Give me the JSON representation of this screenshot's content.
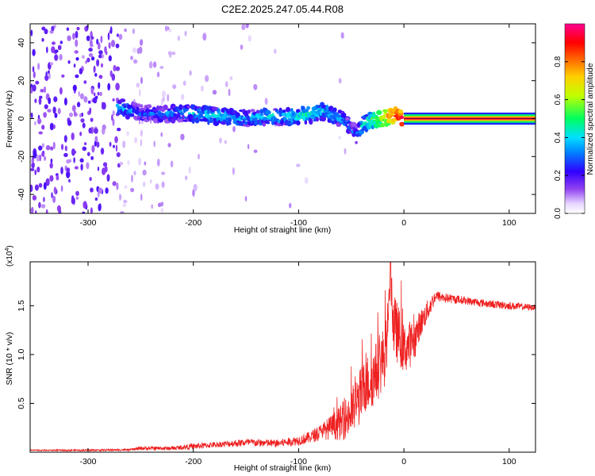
{
  "figure_title": "C2E2.2025.247.05.44.R08",
  "chart_data": [
    {
      "type": "heatmap",
      "title": "C2E2.2025.247.05.44.R08",
      "xlabel": "Height of straight line (km)",
      "ylabel": "Frequency (Hz)",
      "xlim": [
        -355,
        125
      ],
      "ylim": [
        -50,
        50
      ],
      "x_ticks": [
        -300,
        -200,
        -100,
        0,
        100
      ],
      "y_ticks": [
        -40,
        -20,
        0,
        20,
        40
      ],
      "x_tick_labels": [
        "-300",
        "-200",
        "-100",
        "0",
        "100"
      ],
      "y_tick_labels": [
        "-40",
        "-20",
        "0",
        "20",
        "40"
      ],
      "ridge": {
        "description_values": "frequency offset of the strongest spectral ridge vs height",
        "x": [
          -270,
          -250,
          -230,
          -210,
          -190,
          -170,
          -150,
          -130,
          -110,
          -90,
          -75,
          -60,
          -50,
          -45,
          -40,
          -35,
          -25,
          -15,
          -8,
          -3,
          0
        ],
        "y": [
          6,
          3,
          2,
          3,
          2,
          1,
          0,
          1,
          1,
          2,
          4,
          0,
          -5,
          -9,
          -4,
          -2,
          0,
          1,
          2,
          0,
          0
        ],
        "amplitude": [
          0.35,
          0.3,
          0.3,
          0.35,
          0.4,
          0.4,
          0.35,
          0.4,
          0.4,
          0.45,
          0.4,
          0.35,
          0.3,
          0.3,
          0.4,
          0.45,
          0.6,
          0.75,
          0.9,
          0.95,
          1.0
        ]
      },
      "constant_line": {
        "x_start": 0,
        "x_end": 125,
        "frequency": 0,
        "amplitude": 1.0
      },
      "colorbar": {
        "label": "Normalized spectral amplitude",
        "range": [
          0,
          1
        ],
        "ticks": [
          0.0,
          0.2,
          0.4,
          0.6,
          0.8
        ],
        "tick_labels": [
          "0.0",
          "0.2",
          "0.4",
          "0.6",
          "0.8"
        ],
        "colors": [
          "#ffffff",
          "#c8a0f0",
          "#6a00e0",
          "#0000ff",
          "#00d8ff",
          "#00ff40",
          "#ffff00",
          "#ff8000",
          "#ff0000",
          "#ff0080"
        ]
      }
    },
    {
      "type": "line",
      "xlabel": "Height of straight line (km)",
      "ylabel": "SNR (10 * v/v)",
      "y_scale_label": "(x10",
      "y_scale_exponent": "4",
      "xlim": [
        -355,
        125
      ],
      "ylim": [
        0,
        1.95
      ],
      "x_ticks": [
        -300,
        -200,
        -100,
        0,
        100
      ],
      "y_ticks": [
        0.5,
        1.0,
        1.5
      ],
      "x_tick_labels": [
        "-300",
        "-200",
        "-100",
        "0",
        "100"
      ],
      "y_tick_labels": [
        "0.5",
        "1.0",
        "1.5"
      ],
      "color": "#ee2020",
      "series": [
        {
          "name": "SNR",
          "x": [
            -355,
            -300,
            -260,
            -250,
            -220,
            -200,
            -175,
            -150,
            -120,
            -100,
            -90,
            -80,
            -70,
            -60,
            -50,
            -45,
            -40,
            -35,
            -30,
            -25,
            -20,
            -15,
            -13,
            -10,
            -5,
            0,
            5,
            10,
            15,
            20,
            25,
            30,
            40,
            60,
            80,
            100,
            125
          ],
          "y": [
            0.02,
            0.02,
            0.025,
            0.04,
            0.04,
            0.06,
            0.08,
            0.1,
            0.09,
            0.12,
            0.15,
            0.2,
            0.25,
            0.3,
            0.4,
            0.5,
            0.6,
            0.7,
            0.75,
            0.85,
            0.95,
            1.1,
            1.95,
            1.3,
            1.2,
            1.05,
            1.1,
            1.15,
            1.3,
            1.4,
            1.5,
            1.6,
            1.58,
            1.55,
            1.52,
            1.5,
            1.48
          ],
          "noise_amplitude": [
            0.005,
            0.01,
            0.01,
            0.02,
            0.02,
            0.03,
            0.03,
            0.04,
            0.04,
            0.05,
            0.06,
            0.08,
            0.12,
            0.18,
            0.25,
            0.28,
            0.3,
            0.3,
            0.3,
            0.32,
            0.32,
            0.35,
            0.2,
            0.35,
            0.3,
            0.25,
            0.25,
            0.2,
            0.15,
            0.12,
            0.1,
            0.06,
            0.05,
            0.04,
            0.04,
            0.04,
            0.03
          ]
        }
      ]
    }
  ]
}
